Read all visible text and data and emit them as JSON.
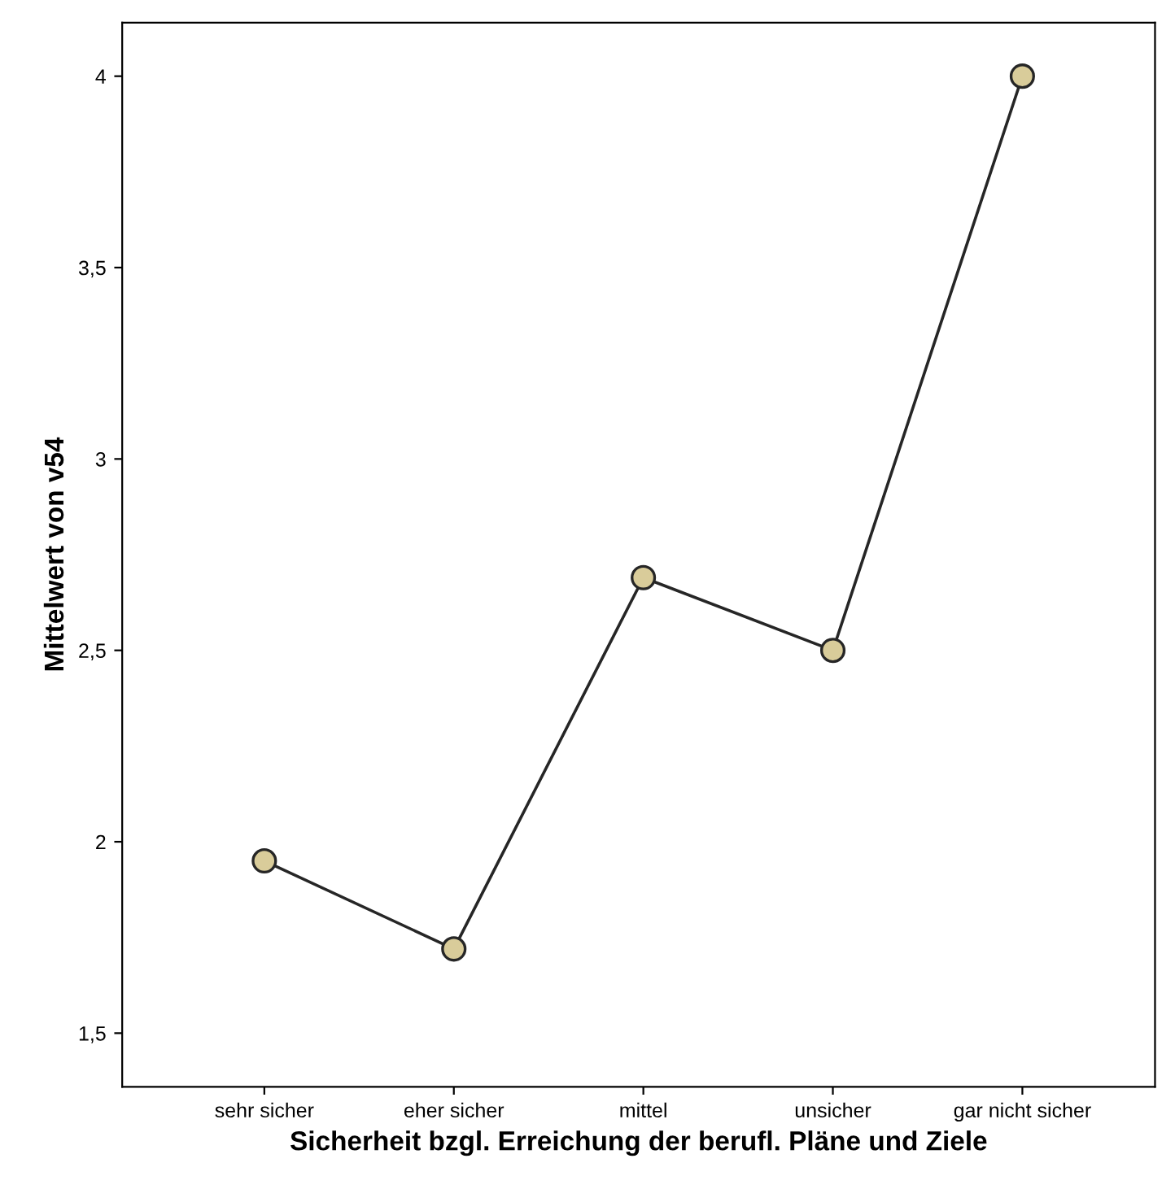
{
  "chart_data": {
    "type": "line",
    "xlabel": "Sicherheit bzgl. Erreichung der berufl. Pläne und Ziele",
    "ylabel": "Mittelwert von v54",
    "categories": [
      "sehr sicher",
      "eher sicher",
      "mittel",
      "unsicher",
      "gar nicht sicher"
    ],
    "series": [
      {
        "color": "#262626",
        "values": [
          1.95,
          1.72,
          2.69,
          2.5,
          4.0
        ]
      }
    ],
    "marker": "circle",
    "line_style": "solid",
    "grid": false,
    "legend": false,
    "ylim": [
      1.36,
      4.14
    ],
    "yticks": [
      {
        "value": 1.5,
        "label": "1,5"
      },
      2,
      {
        "value": 2.5,
        "label": "2,5"
      },
      3,
      {
        "value": 3.5,
        "label": "3,5"
      },
      4
    ]
  }
}
